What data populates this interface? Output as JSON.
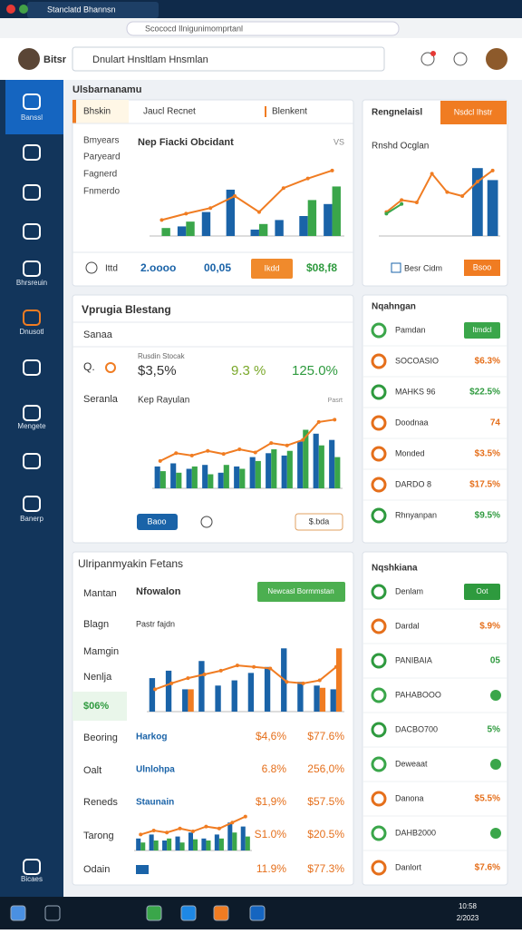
{
  "browser": {
    "tab_title": "Stanclatd Bhannsn",
    "url": "Scococd Ilnigunimomprtanl"
  },
  "header": {
    "user": "Bitsr",
    "search": "Dnulart Hnsltlam Hnsmlan"
  },
  "sidebar": {
    "labels": [
      "Banssl",
      "Bhrsreuin",
      "Dnusotl",
      "Mengete",
      "Banerp",
      "Bicaes"
    ]
  },
  "section_title": "Ulsbarnanamu",
  "panel1": {
    "tabs": [
      "Bhskin",
      "Jaucl Recnet",
      "Blenkent"
    ],
    "menu": [
      "Bmyears",
      "Paryeard",
      "Fagnerd",
      "Fnmerdo"
    ],
    "chart": {
      "type": "bar",
      "title": "Nep Fiacki Obcidant",
      "corner": "VS",
      "ylim": [
        0,
        100
      ],
      "series": [
        {
          "type": "bar",
          "color": "#1a63a8",
          "values": [
            0,
            12,
            30,
            58,
            8,
            20,
            25,
            40
          ]
        },
        {
          "type": "bar",
          "color": "#3aa64a",
          "values": [
            10,
            18,
            0,
            0,
            15,
            0,
            45,
            62
          ]
        },
        {
          "type": "line",
          "color": "#f07c22",
          "values": [
            20,
            28,
            35,
            50,
            30,
            60,
            72,
            82
          ]
        }
      ]
    },
    "footer": {
      "label": "Ittd",
      "stat1": "2.oooo",
      "stat2": "00,05",
      "button": "Ikdd",
      "stat3": "$08,f8"
    }
  },
  "panel1_side": {
    "title": "Rengnelaisl",
    "button": "Nsdcl Ihstr",
    "subtitle": "Rnshd Ocglan",
    "chart": {
      "type": "bar",
      "ylim": [
        0,
        100
      ],
      "series": [
        {
          "type": "bar",
          "color": "#1a63a8",
          "values": [
            0,
            0,
            0,
            0,
            0,
            0,
            85,
            70
          ]
        },
        {
          "type": "line",
          "color": "#f07c22",
          "values": [
            30,
            45,
            42,
            78,
            55,
            50,
            68,
            82
          ]
        },
        {
          "type": "line",
          "color": "#3aa64a",
          "values": [
            28,
            40
          ]
        }
      ]
    },
    "footer_label": "Besr Cidm",
    "footer_button": "Bsoo"
  },
  "panel2": {
    "title": "Vprugia Blestang",
    "dropdown": "Sanaa",
    "search": "Q.",
    "caption": "Rusdin Stocak",
    "stat1": "$3,5%",
    "stat2": "9.3 %",
    "stat3": "125.0%",
    "label": "Seranla",
    "chart": {
      "type": "bar",
      "title": "Kep Rayulan",
      "corner": "Pasrt",
      "ylim": [
        0,
        100
      ],
      "series": [
        {
          "type": "bar",
          "color": "#1a63a8",
          "values": [
            28,
            32,
            25,
            30,
            20,
            28,
            40,
            45,
            42,
            60,
            70,
            62
          ]
        },
        {
          "type": "bar",
          "color": "#3aa64a",
          "values": [
            22,
            20,
            28,
            18,
            30,
            25,
            35,
            50,
            48,
            75,
            55,
            40
          ]
        },
        {
          "type": "line",
          "color": "#f07c22",
          "values": [
            35,
            45,
            42,
            48,
            44,
            50,
            46,
            58,
            55,
            62,
            85,
            88
          ]
        }
      ]
    },
    "button": "Baoo",
    "button2": "$.bda"
  },
  "panel2_side": {
    "title": "Nqahngan",
    "rows": [
      {
        "label": "Pamdan",
        "button": "Itmdcl",
        "color": "#3aa64a"
      },
      {
        "label": "SOCOASIO",
        "value": "$6.3%",
        "color": "#e56f1b"
      },
      {
        "label": "MAHKS 96",
        "value": "$22.5%",
        "color": "#2e9a3e"
      },
      {
        "label": "Doodnaa",
        "value": "74",
        "color": "#e56f1b"
      },
      {
        "label": "Monded",
        "value": "$3.5%",
        "color": "#e56f1b"
      },
      {
        "label": "DARDO 8",
        "value": "$17.5%",
        "color": "#e56f1b"
      },
      {
        "label": "Rhnyanpan",
        "value": "$9.5%",
        "color": "#2e9a3e"
      }
    ]
  },
  "panel3": {
    "title": "Ulripanmyakin Fetans",
    "menu": [
      "Mantan",
      "Blagn",
      "Mamgin",
      "Nenlja",
      "$06%",
      "Beoring",
      "Oalt",
      "Reneds",
      "Tarong",
      "Odain"
    ],
    "heading": "Nfowalon",
    "button": "Newcasl Bormmstan",
    "chart": {
      "type": "bar",
      "title": "Pastr fajdn",
      "ylim": [
        0,
        100
      ],
      "series": [
        {
          "type": "bar",
          "color": "#1a63a8",
          "values": [
            45,
            55,
            30,
            68,
            35,
            42,
            52,
            60,
            85,
            40,
            35,
            30
          ]
        },
        {
          "type": "bar",
          "color": "#f07c22",
          "values": [
            0,
            0,
            30,
            0,
            0,
            0,
            0,
            0,
            0,
            0,
            32,
            85
          ]
        },
        {
          "type": "line",
          "color": "#f07c22",
          "values": [
            30,
            38,
            45,
            50,
            55,
            62,
            60,
            58,
            40,
            38,
            42,
            60
          ]
        }
      ]
    },
    "rows": [
      {
        "label": "Harkog",
        "v1": "$4,6%",
        "v2": "$77.6%"
      },
      {
        "label": "Ulnlohpa",
        "v1": "6.8%",
        "v2": "256,0%"
      },
      {
        "label": "Staunain",
        "v1": "$1,9%",
        "v2": "$57.5%"
      },
      {
        "v1": "S1.0%",
        "v2": "$20.5%"
      },
      {
        "v1": "11.9%",
        "v2": "$77.3%"
      }
    ],
    "mini_chart": {
      "type": "bar",
      "ylim": [
        0,
        100
      ],
      "series": [
        {
          "type": "bar",
          "color": "#1a63a8",
          "values": [
            30,
            40,
            25,
            35,
            45,
            30,
            40,
            70,
            60
          ]
        },
        {
          "type": "bar",
          "color": "#3aa64a",
          "values": [
            20,
            25,
            30,
            20,
            28,
            25,
            30,
            45,
            35
          ]
        },
        {
          "type": "line",
          "color": "#f07c22",
          "values": [
            40,
            50,
            45,
            55,
            48,
            60,
            55,
            70,
            85
          ]
        }
      ]
    }
  },
  "panel3_side": {
    "title": "Nqshkiana",
    "rows": [
      {
        "label": "Denlam",
        "button": "Oot",
        "color": "#2e9a3e"
      },
      {
        "label": "Dardal",
        "value": "$.9%",
        "color": "#e56f1b"
      },
      {
        "label": "PANIBAIA",
        "value": "05",
        "color": "#2e9a3e"
      },
      {
        "label": "PAHABOOO",
        "color": "#3aa64a"
      },
      {
        "label": "DACBO700",
        "value": "5%",
        "color": "#2e9a3e"
      },
      {
        "label": "Deweaat",
        "color": "#3aa64a"
      },
      {
        "label": "Danona",
        "value": "$5.5%",
        "color": "#e56f1b"
      },
      {
        "label": "DAHB2000",
        "color": "#3aa64a"
      },
      {
        "label": "Danlort",
        "value": "$7.6%",
        "color": "#e56f1b"
      }
    ]
  },
  "taskbar": {
    "clock": "10:58",
    "date": "2/2023"
  }
}
